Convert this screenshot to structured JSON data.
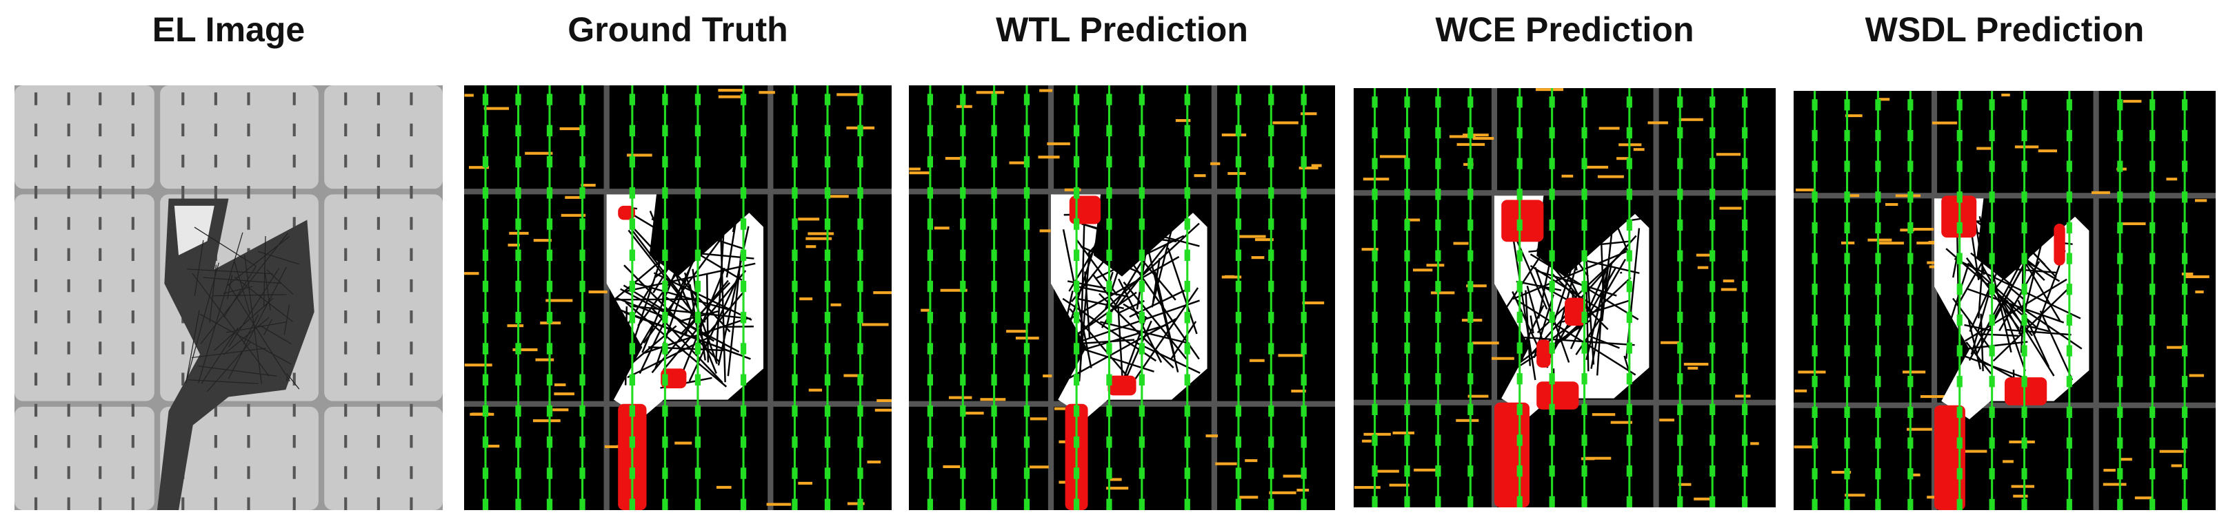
{
  "panels": [
    {
      "title": "EL Image"
    },
    {
      "title": "Ground Truth"
    },
    {
      "title": "WTL Prediction"
    },
    {
      "title": "WCE Prediction"
    },
    {
      "title": "WSDL Prediction"
    }
  ]
}
